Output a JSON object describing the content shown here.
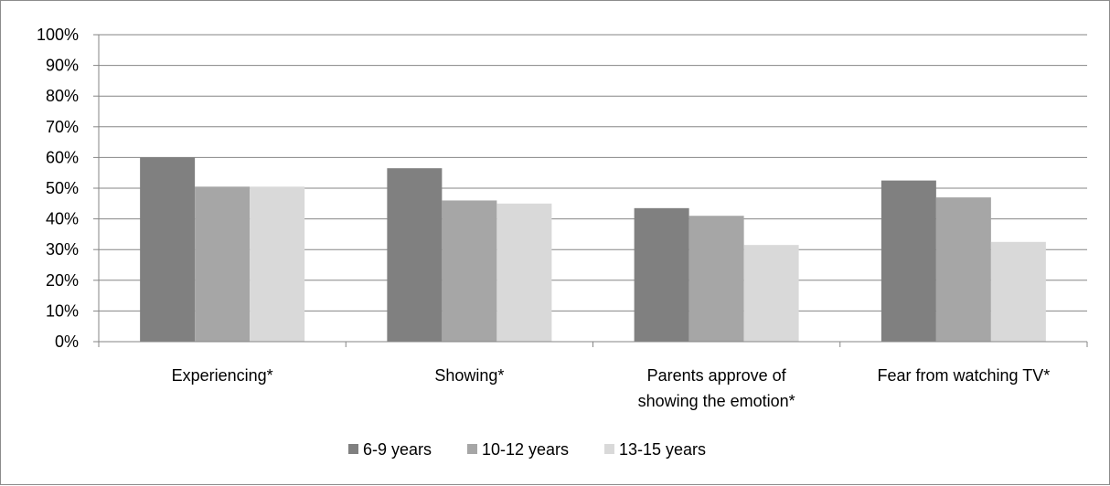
{
  "chart_data": {
    "type": "bar",
    "categories": [
      [
        "Experiencing*"
      ],
      [
        "Showing*"
      ],
      [
        "Parents approve of",
        "showing the emotion*"
      ],
      [
        "Fear from watching TV*"
      ]
    ],
    "series": [
      {
        "name": "6-9 years",
        "values": [
          60,
          56.5,
          43.5,
          52.5
        ],
        "color": "#808080"
      },
      {
        "name": "10-12 years",
        "values": [
          50.5,
          46,
          41,
          47
        ],
        "color": "#a6a6a6"
      },
      {
        "name": "13-15 years",
        "values": [
          50.5,
          45,
          31.5,
          32.5
        ],
        "color": "#d9d9d9"
      }
    ],
    "yticks": [
      "0%",
      "10%",
      "20%",
      "30%",
      "40%",
      "50%",
      "60%",
      "70%",
      "80%",
      "90%",
      "100%"
    ],
    "ylim": [
      0,
      100
    ],
    "grid": true,
    "legend": "bottom"
  }
}
